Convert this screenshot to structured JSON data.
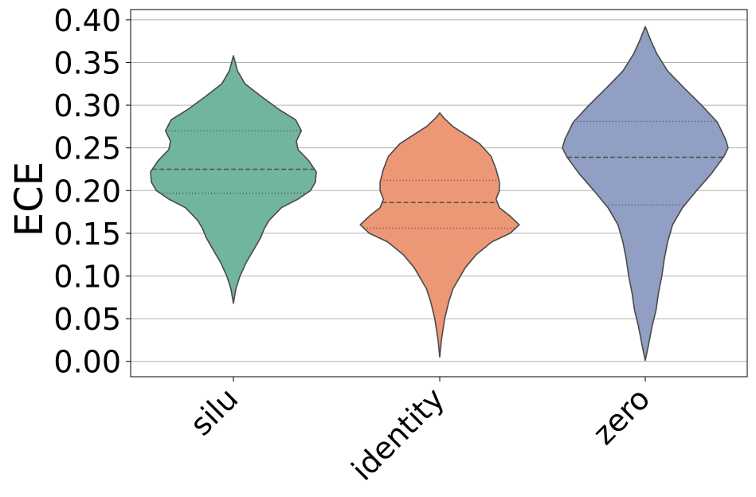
{
  "chart_data": {
    "type": "violin",
    "title": "",
    "xlabel": "",
    "ylabel": "ECE",
    "ylim": [
      -0.018,
      0.412
    ],
    "yticks": [
      0.0,
      0.05,
      0.1,
      0.15,
      0.2,
      0.25,
      0.3,
      0.35,
      0.4
    ],
    "ytick_labels": [
      "0.00",
      "0.05",
      "0.10",
      "0.15",
      "0.20",
      "0.25",
      "0.30",
      "0.35",
      "0.40"
    ],
    "grid": "horizontal",
    "categories": [
      "silu",
      "identity",
      "zero"
    ],
    "series": [
      {
        "category": "silu",
        "color": "#72b59f",
        "min": 0.068,
        "max": 0.358,
        "q1": 0.197,
        "median": 0.225,
        "q3": 0.27,
        "profile": [
          [
            0.068,
            0
          ],
          [
            0.085,
            0.03
          ],
          [
            0.1,
            0.08
          ],
          [
            0.115,
            0.15
          ],
          [
            0.13,
            0.24
          ],
          [
            0.145,
            0.33
          ],
          [
            0.155,
            0.37
          ],
          [
            0.165,
            0.43
          ],
          [
            0.18,
            0.58
          ],
          [
            0.19,
            0.78
          ],
          [
            0.2,
            0.93
          ],
          [
            0.21,
            0.99
          ],
          [
            0.222,
            1.0
          ],
          [
            0.235,
            0.91
          ],
          [
            0.248,
            0.78
          ],
          [
            0.258,
            0.76
          ],
          [
            0.27,
            0.82
          ],
          [
            0.283,
            0.75
          ],
          [
            0.295,
            0.55
          ],
          [
            0.31,
            0.34
          ],
          [
            0.325,
            0.14
          ],
          [
            0.34,
            0.05
          ],
          [
            0.358,
            0
          ]
        ]
      },
      {
        "category": "identity",
        "color": "#ec9876",
        "min": 0.005,
        "max": 0.291,
        "q1": 0.156,
        "median": 0.186,
        "q3": 0.212,
        "profile": [
          [
            0.005,
            0
          ],
          [
            0.025,
            0.02
          ],
          [
            0.05,
            0.06
          ],
          [
            0.07,
            0.11
          ],
          [
            0.085,
            0.16
          ],
          [
            0.095,
            0.22
          ],
          [
            0.11,
            0.31
          ],
          [
            0.125,
            0.44
          ],
          [
            0.14,
            0.63
          ],
          [
            0.15,
            0.85
          ],
          [
            0.16,
            0.96
          ],
          [
            0.17,
            0.85
          ],
          [
            0.18,
            0.72
          ],
          [
            0.19,
            0.68
          ],
          [
            0.2,
            0.72
          ],
          [
            0.21,
            0.72
          ],
          [
            0.225,
            0.68
          ],
          [
            0.24,
            0.62
          ],
          [
            0.255,
            0.48
          ],
          [
            0.265,
            0.32
          ],
          [
            0.275,
            0.16
          ],
          [
            0.285,
            0.05
          ],
          [
            0.291,
            0
          ]
        ]
      },
      {
        "category": "zero",
        "color": "#909fc3",
        "min": 0.001,
        "max": 0.392,
        "q1": 0.183,
        "median": 0.239,
        "q3": 0.281,
        "profile": [
          [
            0.001,
            0
          ],
          [
            0.02,
            0.04
          ],
          [
            0.04,
            0.08
          ],
          [
            0.06,
            0.13
          ],
          [
            0.08,
            0.16
          ],
          [
            0.1,
            0.2
          ],
          [
            0.12,
            0.23
          ],
          [
            0.14,
            0.27
          ],
          [
            0.16,
            0.33
          ],
          [
            0.18,
            0.45
          ],
          [
            0.2,
            0.62
          ],
          [
            0.22,
            0.8
          ],
          [
            0.24,
            0.95
          ],
          [
            0.25,
            1.0
          ],
          [
            0.26,
            0.97
          ],
          [
            0.28,
            0.87
          ],
          [
            0.3,
            0.68
          ],
          [
            0.32,
            0.47
          ],
          [
            0.34,
            0.27
          ],
          [
            0.36,
            0.14
          ],
          [
            0.375,
            0.07
          ],
          [
            0.392,
            0
          ]
        ]
      }
    ]
  }
}
